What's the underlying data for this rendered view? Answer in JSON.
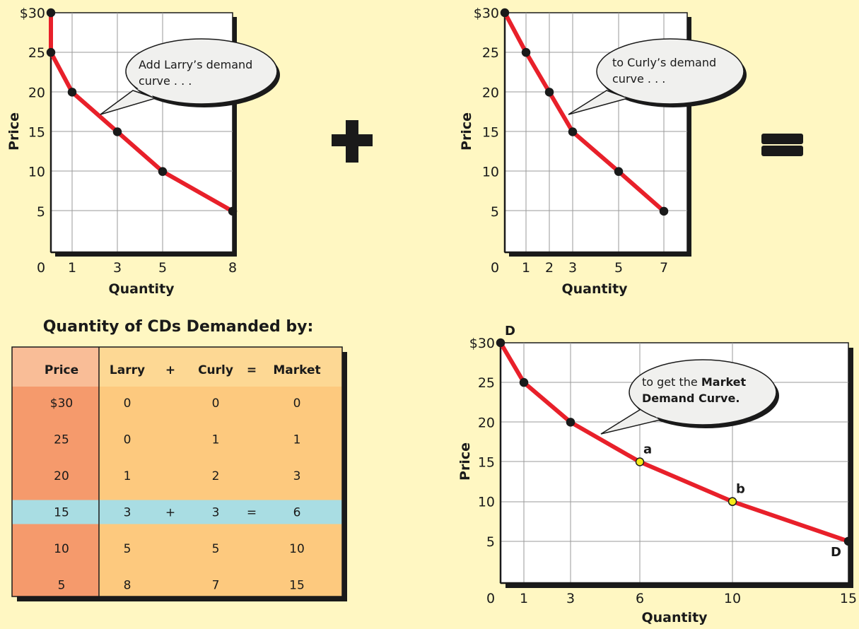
{
  "chart_data": [
    {
      "type": "line",
      "title": "",
      "xlabel": "Quantity",
      "ylabel": "Price",
      "xlim": [
        0,
        8
      ],
      "ylim": [
        0,
        30
      ],
      "x_ticks": [
        "0",
        "1",
        "3",
        "5",
        "8"
      ],
      "y_ticks": [
        "$30",
        "25",
        "20",
        "15",
        "10",
        "5"
      ],
      "grid": true,
      "series": [
        {
          "points": [
            [
              0,
              30
            ],
            [
              0,
              25
            ],
            [
              1,
              20
            ],
            [
              3,
              15
            ],
            [
              5,
              10
            ],
            [
              8,
              5
            ]
          ],
          "color": "#e8202a"
        }
      ],
      "annotation": {
        "lines": [
          "Add Larry’s demand",
          "curve . . ."
        ]
      }
    },
    {
      "type": "line",
      "title": "",
      "xlabel": "Quantity",
      "ylabel": "Price",
      "xlim": [
        0,
        7
      ],
      "ylim": [
        0,
        30
      ],
      "x_ticks": [
        "0",
        "1",
        "2",
        "3",
        "5",
        "7"
      ],
      "y_ticks": [
        "$30",
        "25",
        "20",
        "15",
        "10",
        "5"
      ],
      "grid": true,
      "series": [
        {
          "points": [
            [
              0,
              30
            ],
            [
              1,
              25
            ],
            [
              2,
              20
            ],
            [
              3,
              15
            ],
            [
              5,
              10
            ],
            [
              7,
              5
            ]
          ],
          "color": "#e8202a"
        }
      ],
      "annotation": {
        "lines": [
          "to Curly’s demand",
          "curve . . ."
        ]
      }
    },
    {
      "type": "line",
      "title": "",
      "xlabel": "Quantity",
      "ylabel": "Price",
      "xlim": [
        0,
        15
      ],
      "ylim": [
        0,
        30
      ],
      "x_ticks": [
        "0",
        "1",
        "3",
        "6",
        "10",
        "15"
      ],
      "y_ticks": [
        "$30",
        "25",
        "20",
        "15",
        "10",
        "5"
      ],
      "grid": true,
      "series": [
        {
          "points": [
            [
              0,
              30
            ],
            [
              1,
              25
            ],
            [
              3,
              20
            ],
            [
              6,
              15
            ],
            [
              10,
              10
            ],
            [
              15,
              5
            ]
          ],
          "color": "#e8202a"
        }
      ],
      "highlighted_points": [
        {
          "label": "a",
          "x": 6,
          "y": 15
        },
        {
          "label": "b",
          "x": 10,
          "y": 10
        }
      ],
      "curve_labels": [
        "D",
        "D"
      ],
      "annotation": {
        "lines": [
          "to get the ",
          "Market",
          "Demand Curve."
        ]
      }
    },
    {
      "type": "table",
      "title": "Quantity of CDs Demanded by:",
      "headers": [
        "Price",
        "Larry",
        "+",
        "Curly",
        "=",
        "Market"
      ],
      "rows": [
        [
          "$30",
          "0",
          "",
          "0",
          "",
          "0"
        ],
        [
          "25",
          "0",
          "",
          "1",
          "",
          "1"
        ],
        [
          "20",
          "1",
          "",
          "2",
          "",
          "3"
        ],
        [
          "15",
          "3",
          "+",
          "3",
          "=",
          "6"
        ],
        [
          "10",
          "5",
          "",
          "5",
          "",
          "10"
        ],
        [
          "5",
          "8",
          "",
          "7",
          "",
          "15"
        ]
      ],
      "highlight_row": 3
    }
  ],
  "operators": {
    "plus": "+",
    "equals": "="
  }
}
